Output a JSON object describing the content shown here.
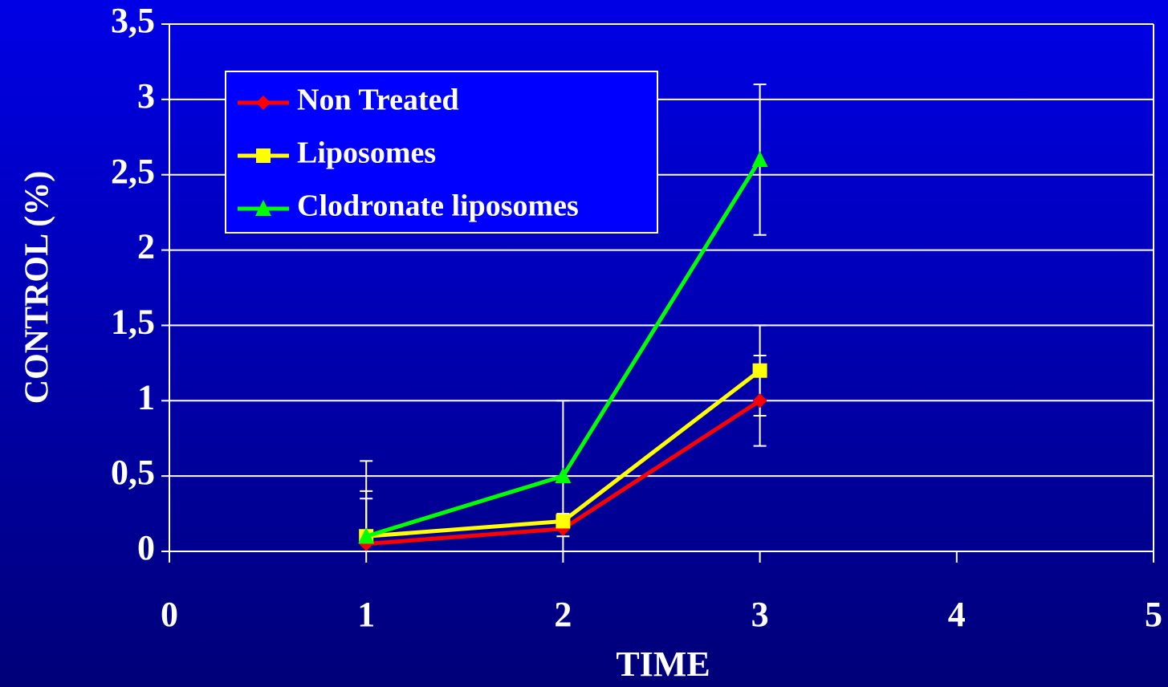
{
  "chart_data": {
    "type": "line",
    "xlabel": "TIME",
    "ylabel": "CONTROL (%)",
    "x": [
      1,
      2,
      3
    ],
    "series": [
      {
        "name": "Non Treated",
        "color": "#ff0000",
        "marker": "diamond",
        "values": [
          0.05,
          0.15,
          1.0
        ],
        "errors": [
          0.3,
          0.05,
          0.3
        ]
      },
      {
        "name": "Liposomes",
        "color": "#ffff00",
        "marker": "square",
        "values": [
          0.1,
          0.2,
          1.2
        ],
        "errors": [
          0.3,
          0.05,
          0.3
        ]
      },
      {
        "name": "Clodronate liposomes",
        "color": "#00ff00",
        "marker": "triangle",
        "values": [
          0.1,
          0.5,
          2.6
        ],
        "errors": [
          0.5,
          0.5,
          0.5
        ]
      }
    ],
    "xlim": [
      0,
      5
    ],
    "xticks": [
      0,
      1,
      2,
      3,
      4,
      5
    ],
    "ylim": [
      0,
      3.5
    ],
    "yticks": [
      0,
      {
        "value": 0.5,
        "label": "0,5"
      },
      1,
      {
        "value": 1.5,
        "label": "1,5"
      },
      2,
      {
        "value": 2.5,
        "label": "2,5"
      },
      3,
      {
        "value": 3.5,
        "label": "3,5"
      }
    ],
    "grid": true,
    "legend": "upper left"
  }
}
